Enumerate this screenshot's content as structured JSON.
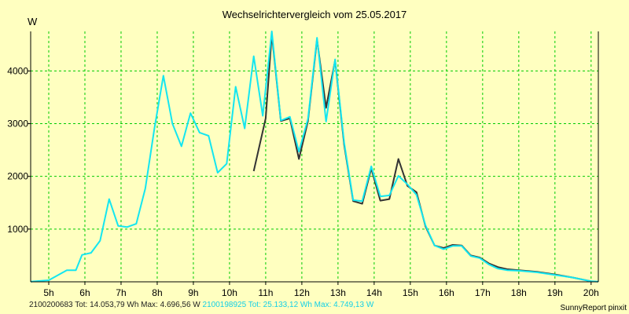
{
  "chart_data": {
    "type": "line",
    "title": "Wechselrichtervergleich vom 25.05.2017",
    "ylabel": "W",
    "xlabel": "",
    "xlim": [
      4.5,
      20.2
    ],
    "ylim": [
      0,
      4750
    ],
    "x_ticks": [
      5,
      6,
      7,
      8,
      9,
      10,
      11,
      12,
      13,
      14,
      15,
      16,
      17,
      18,
      19,
      20
    ],
    "x_tick_labels": [
      "5h",
      "6h",
      "7h",
      "8h",
      "9h",
      "10h",
      "11h",
      "12h",
      "13h",
      "14h",
      "15h",
      "16h",
      "17h",
      "18h",
      "19h",
      "20h"
    ],
    "y_ticks": [
      1000,
      2000,
      3000,
      4000
    ],
    "y_tick_labels": [
      "1000",
      "2000",
      "3000",
      "4000"
    ],
    "grid": true,
    "colors": {
      "background": "#ffffc0",
      "plot_background": "#ffffc0",
      "grid": "#00cc00",
      "axis": "#000000",
      "series_dark": "#333333",
      "series_cyan": "#14e6f0",
      "footer_cyan": "#14cfe6"
    },
    "series": [
      {
        "name": "2100200683",
        "color": "#333333",
        "points": [
          [
            10.67,
            2100
          ],
          [
            11.0,
            3100
          ],
          [
            11.17,
            4700
          ],
          [
            11.42,
            3050
          ],
          [
            11.67,
            3100
          ],
          [
            11.92,
            2330
          ],
          [
            12.17,
            3050
          ],
          [
            12.42,
            4600
          ],
          [
            12.67,
            3300
          ],
          [
            12.92,
            4200
          ],
          [
            13.17,
            2600
          ],
          [
            13.42,
            1530
          ],
          [
            13.67,
            1480
          ],
          [
            13.92,
            2150
          ],
          [
            14.17,
            1540
          ],
          [
            14.42,
            1570
          ],
          [
            14.67,
            2330
          ],
          [
            14.92,
            1820
          ],
          [
            15.17,
            1700
          ],
          [
            15.42,
            1050
          ],
          [
            15.67,
            690
          ],
          [
            15.92,
            640
          ],
          [
            16.17,
            700
          ],
          [
            16.42,
            690
          ],
          [
            16.67,
            500
          ],
          [
            16.92,
            460
          ],
          [
            17.17,
            350
          ],
          [
            17.42,
            280
          ],
          [
            17.67,
            240
          ],
          [
            18.0,
            220
          ],
          [
            18.5,
            190
          ],
          [
            19.0,
            140
          ],
          [
            19.5,
            80
          ],
          [
            20.0,
            10
          ]
        ]
      },
      {
        "name": "2100198925",
        "color": "#14e6f0",
        "points": [
          [
            4.5,
            5
          ],
          [
            5.0,
            30
          ],
          [
            5.5,
            220
          ],
          [
            5.75,
            220
          ],
          [
            5.92,
            510
          ],
          [
            6.17,
            550
          ],
          [
            6.42,
            780
          ],
          [
            6.67,
            1570
          ],
          [
            6.92,
            1060
          ],
          [
            7.17,
            1040
          ],
          [
            7.42,
            1100
          ],
          [
            7.67,
            1770
          ],
          [
            7.92,
            2900
          ],
          [
            8.17,
            3910
          ],
          [
            8.42,
            3000
          ],
          [
            8.67,
            2570
          ],
          [
            8.92,
            3200
          ],
          [
            9.17,
            2830
          ],
          [
            9.42,
            2770
          ],
          [
            9.67,
            2070
          ],
          [
            9.92,
            2240
          ],
          [
            10.17,
            3700
          ],
          [
            10.42,
            2910
          ],
          [
            10.67,
            4280
          ],
          [
            10.92,
            3150
          ],
          [
            11.17,
            4800
          ],
          [
            11.42,
            3060
          ],
          [
            11.67,
            3130
          ],
          [
            11.92,
            2470
          ],
          [
            12.17,
            3090
          ],
          [
            12.42,
            4630
          ],
          [
            12.67,
            3040
          ],
          [
            12.92,
            4220
          ],
          [
            13.17,
            2640
          ],
          [
            13.42,
            1550
          ],
          [
            13.67,
            1530
          ],
          [
            13.92,
            2190
          ],
          [
            14.17,
            1620
          ],
          [
            14.42,
            1640
          ],
          [
            14.67,
            2010
          ],
          [
            14.92,
            1850
          ],
          [
            15.17,
            1650
          ],
          [
            15.42,
            1070
          ],
          [
            15.67,
            690
          ],
          [
            15.92,
            620
          ],
          [
            16.17,
            680
          ],
          [
            16.42,
            680
          ],
          [
            16.67,
            490
          ],
          [
            16.92,
            450
          ],
          [
            17.17,
            330
          ],
          [
            17.42,
            250
          ],
          [
            17.67,
            220
          ],
          [
            18.0,
            210
          ],
          [
            18.5,
            180
          ],
          [
            19.0,
            130
          ],
          [
            19.5,
            80
          ],
          [
            20.0,
            10
          ],
          [
            20.2,
            5
          ]
        ]
      }
    ],
    "footer": {
      "left_dark": "2100200683 Tot: 14.053,79 Wh Max: 4.696,56 W",
      "left_cyan": "2100198925 Tot: 25.133,12 Wh Max: 4.749,13 W",
      "right": "SunnyReport pinxit"
    }
  }
}
